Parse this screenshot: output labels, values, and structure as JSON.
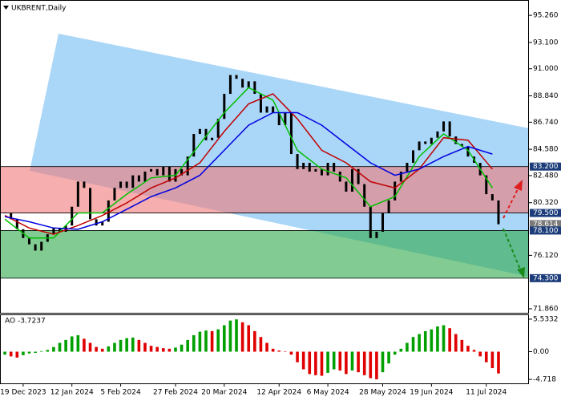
{
  "chart_data": [
    {
      "type": "candlestick",
      "title": "UKBRENT,Daily",
      "xlim": [
        -0.8,
        86
      ],
      "xticks": [
        {
          "value": 3,
          "label": "19 Dec 2023"
        },
        {
          "value": 11,
          "label": "12 Jan 2024"
        },
        {
          "value": 19,
          "label": "5 Feb 2024"
        },
        {
          "value": 28,
          "label": "27 Feb 2024"
        },
        {
          "value": 36,
          "label": "20 Mar 2024"
        },
        {
          "value": 45,
          "label": "12 Apr 2024"
        },
        {
          "value": 53,
          "label": "6 May 2024"
        },
        {
          "value": 62,
          "label": "28 May 2024"
        },
        {
          "value": 70,
          "label": "19 Jun 2024"
        },
        {
          "value": 79,
          "label": "11 Jul 2024"
        }
      ],
      "ylim": [
        71.54,
        96.42
      ],
      "yticks": [
        {
          "value": 95.26,
          "label": "95.260"
        },
        {
          "value": 93.1,
          "label": "93.100"
        },
        {
          "value": 91.0,
          "label": "91.000"
        },
        {
          "value": 88.84,
          "label": "88.840"
        },
        {
          "value": 86.74,
          "label": "86.740"
        },
        {
          "value": 84.58,
          "label": "84.580"
        },
        {
          "value": 82.48,
          "label": "82.480"
        },
        {
          "value": 80.32,
          "label": "80.320"
        },
        {
          "value": 76.12,
          "label": "76.120"
        },
        {
          "value": 71.86,
          "label": "71.860"
        }
      ],
      "candle_color": "#000000",
      "close": [
        79.5,
        79.0,
        78.2,
        77.5,
        77.0,
        76.5,
        77.2,
        77.8,
        78.3,
        78.0,
        78.5,
        80.0,
        82.0,
        81.5,
        79.0,
        78.5,
        78.8,
        80.5,
        81.5,
        82.0,
        81.5,
        82.5,
        82.0,
        82.8,
        83.0,
        82.5,
        83.2,
        82.0,
        83.0,
        82.5,
        84.0,
        85.8,
        86.2,
        85.3,
        85.5,
        87.0,
        89.0,
        90.5,
        90.2,
        89.5,
        90.0,
        89.0,
        87.5,
        88.0,
        87.5,
        86.5,
        87.5,
        84.2,
        83.0,
        83.5,
        82.8,
        83.0,
        82.5,
        83.5,
        82.8,
        82.0,
        81.2,
        83.0,
        81.8,
        80.0,
        77.5,
        78.0,
        79.5,
        80.5,
        82.0,
        82.8,
        83.5,
        84.5,
        85.2,
        85.0,
        85.5,
        86.0,
        86.8,
        85.6,
        85.0,
        84.8,
        84.0,
        83.5,
        82.5,
        81.0,
        80.5,
        78.6
      ],
      "series": [
        {
          "color": "#00c000",
          "x": [
            0,
            4,
            8,
            12,
            16,
            20,
            24,
            28,
            32,
            36,
            40,
            44,
            48,
            52,
            56,
            60,
            64,
            68,
            72,
            76,
            80
          ],
          "values": [
            79.0,
            77.5,
            77.5,
            79.5,
            79.5,
            81.0,
            82.3,
            82.5,
            85.0,
            87.5,
            89.5,
            88.5,
            84.5,
            83.0,
            82.3,
            80.0,
            80.8,
            84.0,
            85.8,
            84.5,
            81.5
          ]
        },
        {
          "color": "#c00000",
          "x": [
            0,
            4,
            8,
            12,
            16,
            20,
            24,
            28,
            32,
            36,
            40,
            44,
            48,
            52,
            56,
            60,
            64,
            68,
            72,
            76,
            80
          ],
          "values": [
            79.3,
            78.3,
            77.8,
            78.5,
            79.3,
            80.3,
            81.5,
            82.3,
            83.5,
            86.0,
            88.2,
            89.0,
            87.0,
            84.5,
            83.5,
            82.0,
            81.5,
            83.0,
            85.5,
            85.3,
            83.0
          ]
        },
        {
          "color": "#0000e0",
          "x": [
            0,
            4,
            8,
            12,
            16,
            20,
            24,
            28,
            32,
            36,
            40,
            44,
            48,
            52,
            56,
            60,
            64,
            68,
            72,
            76,
            80
          ],
          "values": [
            79.2,
            78.8,
            78.3,
            78.2,
            78.8,
            79.8,
            80.8,
            81.5,
            82.5,
            84.5,
            86.5,
            87.5,
            87.5,
            86.5,
            85.0,
            83.5,
            82.5,
            83.0,
            84.0,
            84.8,
            84.2
          ]
        }
      ],
      "zones": [
        {
          "top": 83.2,
          "bottom": 79.5,
          "color": "#f07878"
        },
        {
          "top": 78.1,
          "bottom": 74.3,
          "color": "#2ea84a"
        }
      ],
      "price_labels": [
        {
          "value": 83.2,
          "label": "83.200",
          "color": "#1c3d7a"
        },
        {
          "value": 79.5,
          "label": "79.500",
          "color": "#1c3d7a"
        },
        {
          "value": 78.614,
          "label": "78.614",
          "color": "#7a7a7a"
        },
        {
          "value": 78.1,
          "label": "78.100",
          "color": "#1c3d7a"
        },
        {
          "value": 74.3,
          "label": "74.300",
          "color": "#1c3d7a"
        }
      ]
    },
    {
      "type": "bar",
      "title": "AO -3.7237",
      "ylim": [
        -5.39,
        6.21
      ],
      "yticks": [
        {
          "value": 5.5332,
          "label": "5.5332"
        },
        {
          "value": 0,
          "label": "0.00"
        },
        {
          "value": -4.718,
          "label": "-4.718"
        }
      ],
      "up_color": "#00a000",
      "down_color": "#e00000",
      "values": [
        -0.5,
        -0.8,
        -1.0,
        -0.6,
        -0.3,
        -0.2,
        0.1,
        0.3,
        0.8,
        1.5,
        2.0,
        2.6,
        2.8,
        2.2,
        1.5,
        0.8,
        0.5,
        0.9,
        1.5,
        2.0,
        2.3,
        2.4,
        2.0,
        1.5,
        1.0,
        0.8,
        0.6,
        0.5,
        0.7,
        1.2,
        2.0,
        2.8,
        3.4,
        3.6,
        3.5,
        3.8,
        4.5,
        5.3,
        5.5,
        5.0,
        4.5,
        3.5,
        2.5,
        1.5,
        0.5,
        0.2,
        0.0,
        -0.5,
        -1.8,
        -3.0,
        -3.8,
        -4.0,
        -4.1,
        -3.6,
        -3.0,
        -3.2,
        -3.8,
        -3.2,
        -3.5,
        -4.0,
        -4.5,
        -4.7,
        -3.5,
        -2.0,
        -0.5,
        0.5,
        1.5,
        2.5,
        3.0,
        3.5,
        3.8,
        4.3,
        4.5,
        4.0,
        3.0,
        2.0,
        1.0,
        0.3,
        -0.8,
        -1.8,
        -2.8,
        -3.7
      ]
    }
  ]
}
